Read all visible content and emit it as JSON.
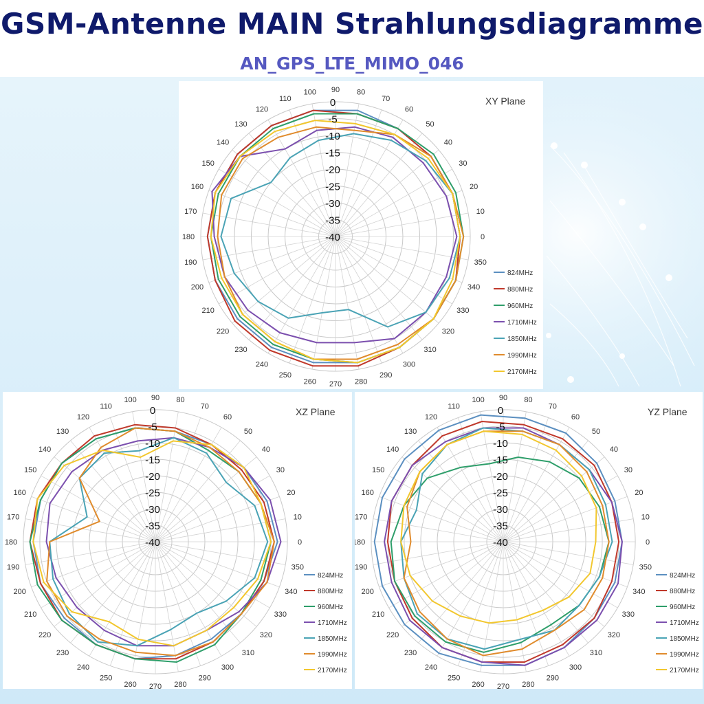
{
  "header": {
    "title": "GSM-Antenne MAIN Strahlungsdiagramme",
    "subtitle": "AN_GPS_LTE_MIMO_046"
  },
  "colors": {
    "title": "#0f1a6b",
    "subtitle": "#5558c0",
    "series": [
      "#5b8fc0",
      "#c0392b",
      "#2e9e6a",
      "#7b4fae",
      "#4aa3b5",
      "#e08b2c",
      "#f2c72e"
    ]
  },
  "chart_data": [
    {
      "type": "polar",
      "title": "XY Plane",
      "r_ticks": [
        "0",
        "-5",
        "-10",
        "-15",
        "-20",
        "-25",
        "-30",
        "-35",
        "-40"
      ],
      "r_range": [
        -40,
        0
      ],
      "angle_ticks": [
        "0",
        "10",
        "20",
        "30",
        "40",
        "50",
        "60",
        "70",
        "80",
        "90",
        "100",
        "110",
        "120",
        "130",
        "140",
        "150",
        "160",
        "170",
        "180",
        "190",
        "200",
        "210",
        "220",
        "230",
        "240",
        "250",
        "260",
        "270",
        "280",
        "290",
        "300",
        "310",
        "320",
        "330",
        "340",
        "350"
      ],
      "grid": true,
      "legend_position": "right",
      "series": [
        {
          "name": "824MHz",
          "values": [
            -3,
            -3,
            -3,
            -3,
            -2,
            -2,
            -2,
            -2,
            -2,
            -2,
            -2,
            -2,
            -2,
            -2,
            -2,
            -2,
            -2,
            -2
          ]
        },
        {
          "name": "880MHz",
          "values": [
            -3,
            -3,
            -3,
            -3,
            -3,
            -2,
            -2,
            -2,
            -2,
            -2,
            -2,
            -1,
            -1,
            -1,
            -1,
            -2,
            -2,
            -2
          ]
        },
        {
          "name": "960MHz",
          "values": [
            -2,
            -2,
            -2,
            -3,
            -3,
            -3,
            -3,
            -3,
            -3,
            -3,
            -3,
            -3,
            -3,
            -3,
            -2,
            -2,
            -2,
            -2
          ]
        },
        {
          "name": "1710MHz",
          "values": [
            -4,
            -5,
            -6,
            -6,
            -7,
            -8,
            -10,
            -3,
            -1,
            -4,
            -5,
            -6,
            -7,
            -8,
            -8,
            -5,
            -5,
            -5
          ]
        },
        {
          "name": "1850MHz",
          "values": [
            -3,
            -3,
            -5,
            -7,
            -9,
            -11,
            -13,
            -15,
            -7,
            -6,
            -8,
            -10,
            -12,
            -17,
            -18,
            -9,
            -5,
            -4
          ]
        },
        {
          "name": "1990MHz",
          "values": [
            -2,
            -3,
            -3,
            -5,
            -8,
            -7,
            -6,
            -4,
            -4,
            -5,
            -5,
            -4,
            -4,
            -3,
            -3,
            -3,
            -2,
            -2
          ]
        },
        {
          "name": "2170MHz",
          "values": [
            -3,
            -3,
            -4,
            -5,
            -6,
            -5,
            -4,
            -3,
            -2,
            -3,
            -4,
            -4,
            -4,
            -3,
            -2,
            -2,
            -2,
            -3
          ]
        }
      ]
    },
    {
      "type": "polar",
      "title": "XZ Plane",
      "r_ticks": [
        "0",
        "-5",
        "-10",
        "-15",
        "-20",
        "-25",
        "-30",
        "-35",
        "-40"
      ],
      "r_range": [
        -40,
        0
      ],
      "angle_ticks": [
        "0",
        "10",
        "20",
        "30",
        "40",
        "50",
        "60",
        "70",
        "80",
        "90",
        "100",
        "110",
        "120",
        "130",
        "140",
        "150",
        "160",
        "170",
        "180",
        "190",
        "200",
        "210",
        "220",
        "230",
        "240",
        "250",
        "260",
        "270",
        "280",
        "290",
        "300",
        "310",
        "320",
        "330",
        "340",
        "350"
      ],
      "grid": true,
      "legend_position": "right",
      "series": [
        {
          "name": "824MHz",
          "values": [
            -3,
            -4,
            -5,
            -6,
            -6,
            -5,
            -4,
            -3,
            -3,
            -3,
            -3,
            -4,
            -4,
            -4,
            -5,
            -6,
            -6,
            -5
          ]
        },
        {
          "name": "880MHz",
          "values": [
            -4,
            -5,
            -6,
            -6,
            -5,
            -4,
            -3,
            -3,
            -2,
            -2,
            -3,
            -3,
            -4,
            -4,
            -4,
            -5,
            -6,
            -5
          ]
        },
        {
          "name": "960MHz",
          "values": [
            -5,
            -6,
            -7,
            -8,
            -6,
            -5,
            -4,
            -3,
            -3,
            -2,
            -2,
            -3,
            -4,
            -4,
            -3,
            -4,
            -6,
            -6
          ]
        },
        {
          "name": "1710MHz",
          "values": [
            -2,
            -3,
            -5,
            -7,
            -8,
            -9,
            -8,
            -7,
            -6,
            -7,
            -8,
            -9,
            -9,
            -8,
            -8,
            -9,
            -7,
            -4
          ]
        },
        {
          "name": "1850MHz",
          "values": [
            -6,
            -8,
            -12,
            -9,
            -8,
            -12,
            -9,
            -10,
            -18,
            -8,
            -7,
            -6,
            -5,
            -8,
            -13,
            -15,
            -12,
            -8
          ]
        },
        {
          "name": "1990MHz",
          "values": [
            -4,
            -6,
            -7,
            -7,
            -6,
            -5,
            -7,
            -10,
            -22,
            -8,
            -5,
            -5,
            -6,
            -6,
            -5,
            -5,
            -6,
            -4
          ]
        },
        {
          "name": "2170MHz",
          "values": [
            -5,
            -6,
            -5,
            -6,
            -9,
            -14,
            -8,
            -4,
            -2,
            -3,
            -4,
            -7,
            -12,
            -10,
            -8,
            -9,
            -9,
            -7
          ]
        }
      ]
    },
    {
      "type": "polar",
      "title": "YZ Plane",
      "r_ticks": [
        "0",
        "-5",
        "-10",
        "-15",
        "-20",
        "-25",
        "-30",
        "-35",
        "-40"
      ],
      "r_range": [
        -40,
        0
      ],
      "angle_ticks": [
        "0",
        "10",
        "20",
        "30",
        "40",
        "50",
        "60",
        "70",
        "80",
        "90",
        "100",
        "110",
        "120",
        "130",
        "140",
        "150",
        "160",
        "170",
        "180",
        "190",
        "200",
        "210",
        "220",
        "230",
        "240",
        "250",
        "260",
        "270",
        "280",
        "290",
        "300",
        "310",
        "320",
        "330",
        "340",
        "350"
      ],
      "grid": true,
      "legend_position": "right",
      "series": [
        {
          "name": "824MHz",
          "values": [
            -4,
            -4,
            -3,
            -2,
            -2,
            -1,
            -1,
            -1,
            -1,
            -1,
            -1,
            -1,
            -1,
            -2,
            -2,
            -3,
            -4,
            -4
          ]
        },
        {
          "name": "880MHz",
          "values": [
            -5,
            -5,
            -4,
            -4,
            -4,
            -3,
            -3,
            -4,
            -4,
            -5,
            -5,
            -4,
            -3,
            -3,
            -3,
            -4,
            -4,
            -5
          ]
        },
        {
          "name": "960MHz",
          "values": [
            -8,
            -9,
            -10,
            -12,
            -14,
            -16,
            -14,
            -10,
            -8,
            -6,
            -5,
            -5,
            -5,
            -6,
            -9,
            -11,
            -10,
            -9
          ]
        },
        {
          "name": "1710MHz",
          "values": [
            -4,
            -5,
            -6,
            -6,
            -5,
            -5,
            -5,
            -4,
            -4,
            -4,
            -4,
            -3,
            -3,
            -3,
            -2,
            -3,
            -3,
            -3
          ]
        },
        {
          "name": "1850MHz",
          "values": [
            -7,
            -7,
            -6,
            -6,
            -6,
            -5,
            -6,
            -8,
            -12,
            -9,
            -8,
            -6,
            -6,
            -7,
            -10,
            -9,
            -10,
            -9
          ]
        },
        {
          "name": "1990MHz",
          "values": [
            -8,
            -8,
            -7,
            -6,
            -6,
            -6,
            -6,
            -7,
            -9,
            -12,
            -8,
            -7,
            -6,
            -5,
            -7,
            -9,
            -8,
            -8
          ]
        },
        {
          "name": "2170MHz",
          "values": [
            -12,
            -10,
            -9,
            -8,
            -7,
            -6,
            -6,
            -7,
            -8,
            -9,
            -10,
            -12,
            -14,
            -15,
            -16,
            -16,
            -14,
            -12
          ]
        }
      ]
    }
  ]
}
